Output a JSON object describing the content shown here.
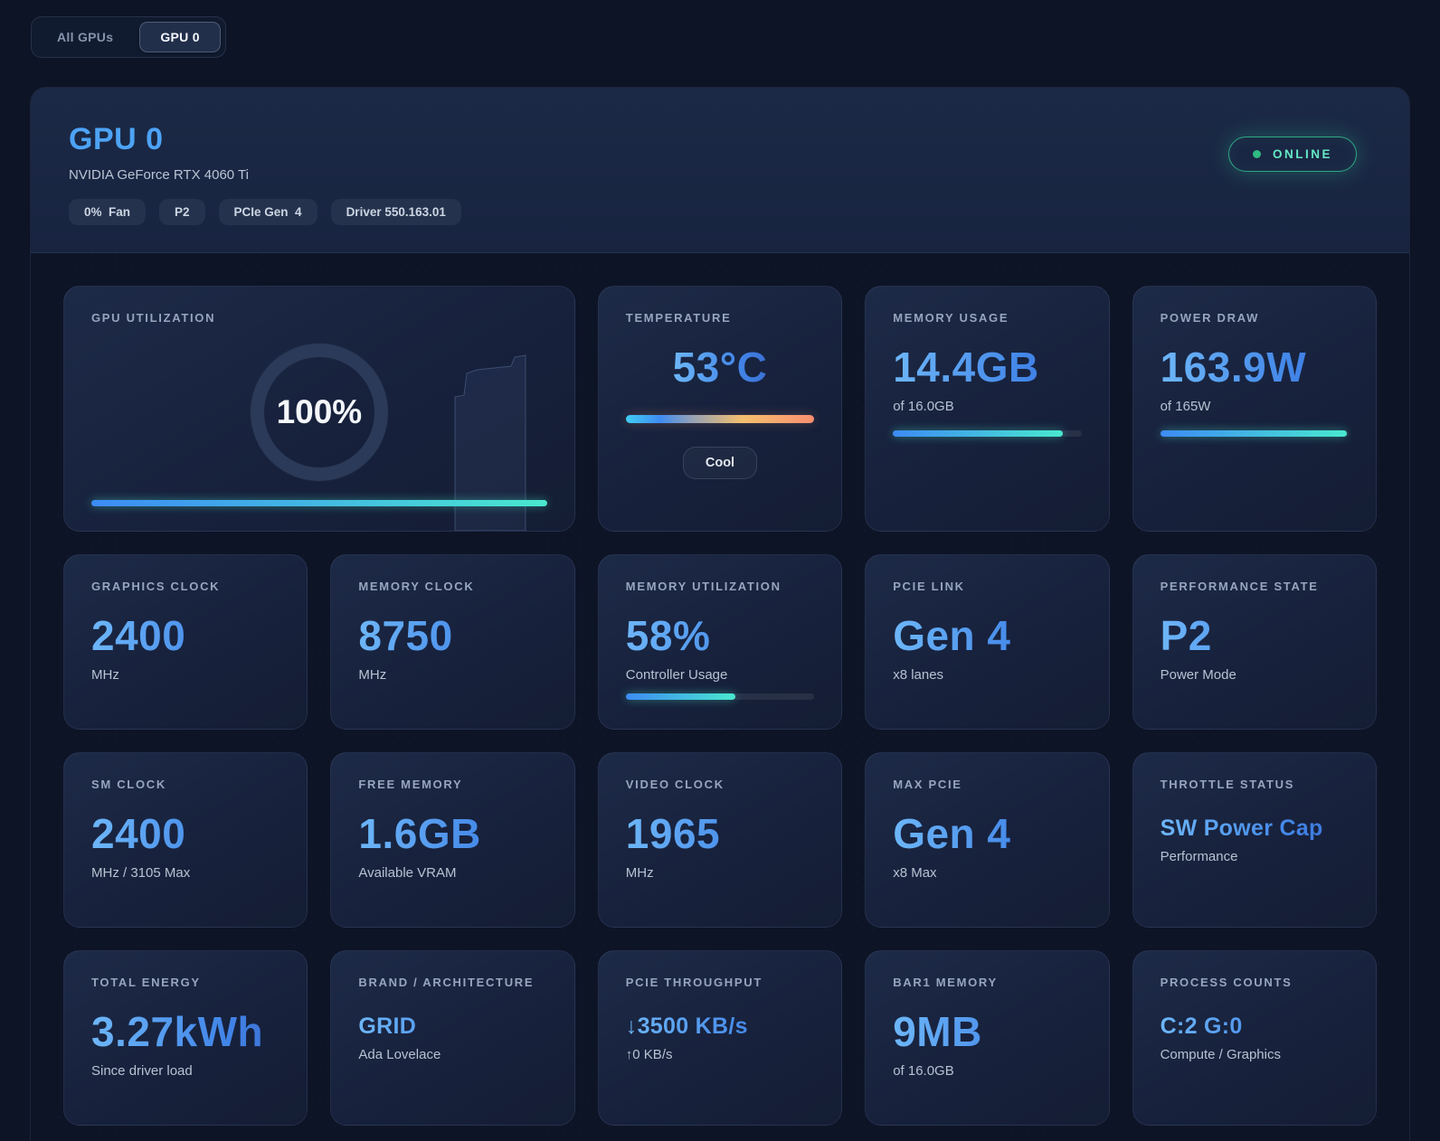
{
  "tabs": {
    "all_gpus": "All GPUs",
    "gpu0": "GPU 0"
  },
  "header": {
    "title": "GPU 0",
    "subtitle": "NVIDIA GeForce RTX 4060 Ti",
    "badges": [
      "0%  Fan",
      "P2",
      "PCIe Gen  4",
      "Driver 550.163.01"
    ],
    "status": "ONLINE"
  },
  "colors": {
    "accent_blue": "#4da3f5",
    "accent_teal": "#49e8cf",
    "status_green": "#34d399"
  },
  "cards": {
    "gpu_utilization": {
      "label": "GPU UTILIZATION",
      "value": "100%",
      "percent": 100
    },
    "temperature": {
      "label": "TEMPERATURE",
      "value": "53°C",
      "chip": "Cool"
    },
    "memory_usage": {
      "label": "MEMORY USAGE",
      "value": "14.4GB",
      "sub": "of 16.0GB",
      "percent": 90
    },
    "power_draw": {
      "label": "POWER DRAW",
      "value": "163.9W",
      "sub": "of 165W",
      "percent": 99
    },
    "graphics_clock": {
      "label": "GRAPHICS CLOCK",
      "value": "2400",
      "sub": "MHz"
    },
    "memory_clock": {
      "label": "MEMORY CLOCK",
      "value": "8750",
      "sub": "MHz"
    },
    "memory_utilization": {
      "label": "MEMORY UTILIZATION",
      "value": "58%",
      "sub": "Controller Usage",
      "percent": 58
    },
    "pcie_link": {
      "label": "PCIE LINK",
      "value": "Gen 4",
      "sub": "x8 lanes"
    },
    "performance_state": {
      "label": "PERFORMANCE STATE",
      "value": "P2",
      "sub": "Power Mode"
    },
    "sm_clock": {
      "label": "SM CLOCK",
      "value": "2400",
      "sub": "MHz / 3105 Max"
    },
    "free_memory": {
      "label": "FREE MEMORY",
      "value": "1.6GB",
      "sub": "Available VRAM"
    },
    "video_clock": {
      "label": "VIDEO CLOCK",
      "value": "1965",
      "sub": "MHz"
    },
    "max_pcie": {
      "label": "MAX PCIE",
      "value": "Gen 4",
      "sub": "x8 Max"
    },
    "throttle_status": {
      "label": "THROTTLE STATUS",
      "value": "SW Power Cap",
      "sub": "Performance"
    },
    "total_energy": {
      "label": "TOTAL ENERGY",
      "value": "3.27kWh",
      "sub": "Since driver load"
    },
    "brand_architecture": {
      "label": "BRAND / ARCHITECTURE",
      "value": "GRID",
      "sub": "Ada Lovelace"
    },
    "pcie_throughput": {
      "label": "PCIE THROUGHPUT",
      "value": "↓3500 KB/s",
      "sub": "↑0 KB/s"
    },
    "bar1_memory": {
      "label": "BAR1 MEMORY",
      "value": "9MB",
      "sub": "of 16.0GB"
    },
    "process_counts": {
      "label": "PROCESS COUNTS",
      "value": "C:2 G:0",
      "sub": "Compute / Graphics"
    }
  }
}
